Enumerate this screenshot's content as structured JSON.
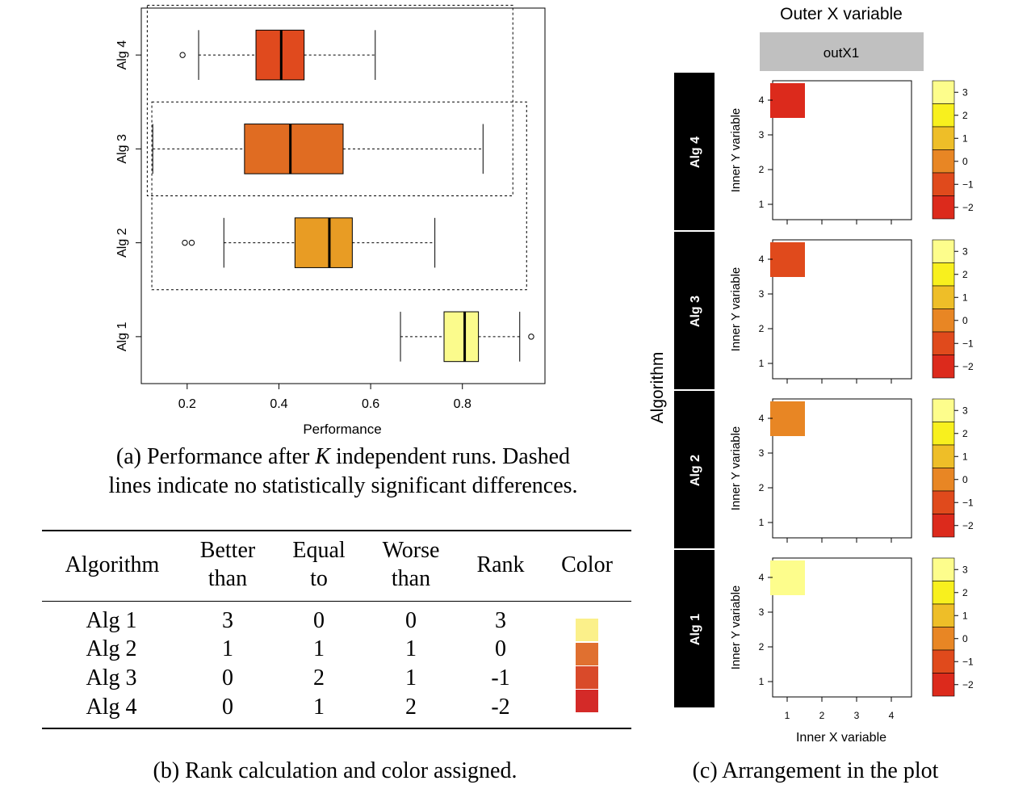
{
  "panel_a": {
    "caption_pre": "(a) Performance after ",
    "caption_k": "K",
    "caption_post": " independent runs. Dashed",
    "caption_line2": "lines indicate no statistically significant differences."
  },
  "panel_b": {
    "caption": "(b) Rank calculation and color assigned.",
    "headers": {
      "algorithm": "Algorithm",
      "better": [
        "Better",
        "than"
      ],
      "equal": [
        "Equal",
        "to"
      ],
      "worse": [
        "Worse",
        "than"
      ],
      "rank": "Rank",
      "color": "Color"
    },
    "rows": [
      {
        "name": "Alg 1",
        "better": "3",
        "equal": "0",
        "worse": "0",
        "rank": "3",
        "color": "#fbf08a"
      },
      {
        "name": "Alg 2",
        "better": "1",
        "equal": "1",
        "worse": "1",
        "rank": "0",
        "color": "#e07030"
      },
      {
        "name": "Alg 3",
        "better": "0",
        "equal": "2",
        "worse": "1",
        "rank": "-1",
        "color": "#d94a2a"
      },
      {
        "name": "Alg 4",
        "better": "0",
        "equal": "1",
        "worse": "2",
        "rank": "-2",
        "color": "#d42a28"
      }
    ]
  },
  "panel_c": {
    "caption": "(c) Arrangement in the plot",
    "title": "Outer X variable",
    "strip_label": "outX1",
    "y_outer_label": "Algorithm",
    "inner_y_label": "Inner Y variable",
    "inner_x_label": "Inner X variable"
  },
  "chart_data": [
    {
      "type": "boxplot",
      "orientation": "horizontal",
      "xlabel": "Performance",
      "xlim": [
        0.1,
        0.98
      ],
      "xticks": [
        0.2,
        0.4,
        0.6,
        0.8
      ],
      "xtick_labels": [
        "0.2",
        "0.4",
        "0.6",
        "0.8"
      ],
      "categories": [
        "Alg 1",
        "Alg 2",
        "Alg 3",
        "Alg 4"
      ],
      "boxes": [
        {
          "name": "Alg 1",
          "whisker_low": 0.665,
          "q1": 0.76,
          "median": 0.805,
          "q3": 0.835,
          "whisker_high": 0.925,
          "outliers": [
            0.95
          ],
          "color": "#fbfb8c"
        },
        {
          "name": "Alg 2",
          "whisker_low": 0.28,
          "q1": 0.435,
          "median": 0.51,
          "q3": 0.56,
          "whisker_high": 0.74,
          "outliers": [
            0.195,
            0.21
          ],
          "color": "#e89c24"
        },
        {
          "name": "Alg 3",
          "whisker_low": 0.125,
          "q1": 0.325,
          "median": 0.425,
          "q3": 0.54,
          "whisker_high": 0.845,
          "outliers": [],
          "color": "#e06c22"
        },
        {
          "name": "Alg 4",
          "whisker_low": 0.225,
          "q1": 0.35,
          "median": 0.405,
          "q3": 0.455,
          "whisker_high": 0.61,
          "outliers": [
            0.19
          ],
          "color": "#e04a1e"
        }
      ],
      "grid": false
    },
    {
      "type": "heatmap",
      "panels": [
        {
          "strip": "Alg 4",
          "cell_x": 1,
          "cell_y": 4,
          "value": -2,
          "color": "#dc2a1c"
        },
        {
          "strip": "Alg 3",
          "cell_x": 1,
          "cell_y": 4,
          "value": -1,
          "color": "#e04a1c"
        },
        {
          "strip": "Alg 2",
          "cell_x": 1,
          "cell_y": 4,
          "value": 0,
          "color": "#e88624"
        },
        {
          "strip": "Alg 1",
          "cell_x": 1,
          "cell_y": 4,
          "value": 3,
          "color": "#fdfd8c"
        }
      ],
      "x_ticks": [
        "1",
        "2",
        "3",
        "4"
      ],
      "y_ticks": [
        "1",
        "2",
        "3",
        "4"
      ],
      "colorkey": {
        "labels": [
          "3",
          "2",
          "1",
          "0",
          "−1",
          "−2"
        ],
        "colors": [
          "#fdfd8c",
          "#f8f01e",
          "#eebe28",
          "#e88624",
          "#e04a1c",
          "#dc2a1c"
        ]
      }
    }
  ]
}
